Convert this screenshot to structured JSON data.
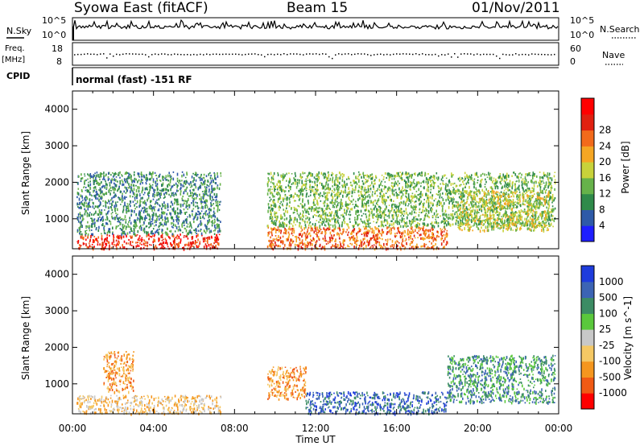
{
  "header": {
    "title": "Syowa East (fitACF)",
    "beam": "Beam 15",
    "date": "01/Nov/2011"
  },
  "strips": {
    "nsky_label": "N.Sky",
    "nsky_scale": [
      "10^5",
      "10^0"
    ],
    "nsearch_label": "N.Search",
    "nsearch_scale": [
      "10^5",
      "10^0"
    ],
    "freq_label": "Freq.",
    "freq_unit": "[MHz]",
    "freq_scale": [
      "18",
      "8"
    ],
    "nave_label": "Nave",
    "nave_scale": [
      "60",
      "0"
    ],
    "cpid_label": "CPID",
    "cpid_text": "normal (fast) -151 RF"
  },
  "colors": {
    "power": [
      "#1e1eff",
      "#2e5aa8",
      "#2f8a4a",
      "#66b24a",
      "#c8d23a",
      "#f5a623",
      "#f26a1b",
      "#e02010",
      "#ff0000"
    ],
    "velocity": [
      "#ff0000",
      "#f05a14",
      "#f5961e",
      "#f5c864",
      "#c8c8c8",
      "#5ac83c",
      "#3c8c64",
      "#3c64b4",
      "#1e3cdc"
    ]
  },
  "chart_data": [
    {
      "type": "heatmap",
      "title": "Power",
      "ylabel": "Slant Range [km]",
      "xlabel": "",
      "x_ticks": [
        "00:00",
        "04:00",
        "08:00",
        "12:00",
        "16:00",
        "20:00",
        "00:00"
      ],
      "x_range_hours": [
        0,
        24
      ],
      "ylim": [
        180,
        4500
      ],
      "y_ticks": [
        1000,
        2000,
        3000,
        4000
      ],
      "colorbar": {
        "label": "Power [dB]",
        "ticks": [
          4,
          8,
          12,
          16,
          20,
          24,
          28
        ],
        "range": [
          0,
          30
        ]
      },
      "data_gap_hours": [
        7.4,
        9.2
      ],
      "regions": [
        {
          "t": [
            0.2,
            7.3
          ],
          "range_km": [
            200,
            600
          ],
          "value": 26
        },
        {
          "t": [
            0.2,
            7.3
          ],
          "range_km": [
            600,
            2300
          ],
          "value": 8
        },
        {
          "t": [
            9.6,
            18.5
          ],
          "range_km": [
            200,
            800
          ],
          "value": 24
        },
        {
          "t": [
            9.6,
            23.8
          ],
          "range_km": [
            800,
            2300
          ],
          "value": 10
        },
        {
          "t": [
            19.0,
            23.5
          ],
          "range_km": [
            700,
            1800
          ],
          "value": 16
        }
      ]
    },
    {
      "type": "heatmap",
      "title": "Velocity",
      "ylabel": "Slant Range [km]",
      "xlabel": "Time UT",
      "x_ticks": [
        "00:00",
        "04:00",
        "08:00",
        "12:00",
        "16:00",
        "20:00",
        "00:00"
      ],
      "x_range_hours": [
        0,
        24
      ],
      "ylim": [
        180,
        4500
      ],
      "y_ticks": [
        1000,
        2000,
        3000,
        4000
      ],
      "colorbar": {
        "label": "Velocity [m s^-1]",
        "ticks": [
          -1000,
          -500,
          -100,
          -25,
          25,
          100,
          500,
          1000
        ]
      },
      "data_gap_hours": [
        7.4,
        9.2
      ],
      "regions": [
        {
          "t": [
            0.2,
            7.3
          ],
          "range_km": [
            200,
            700
          ],
          "value": -100
        },
        {
          "t": [
            1.5,
            3.0
          ],
          "range_km": [
            800,
            1900
          ],
          "value": -500
        },
        {
          "t": [
            9.6,
            11.5
          ],
          "range_km": [
            600,
            1500
          ],
          "value": -500
        },
        {
          "t": [
            11.5,
            18.5
          ],
          "range_km": [
            200,
            800
          ],
          "value": 500
        },
        {
          "t": [
            18.5,
            23.8
          ],
          "range_km": [
            500,
            1800
          ],
          "value": 100
        }
      ]
    }
  ]
}
